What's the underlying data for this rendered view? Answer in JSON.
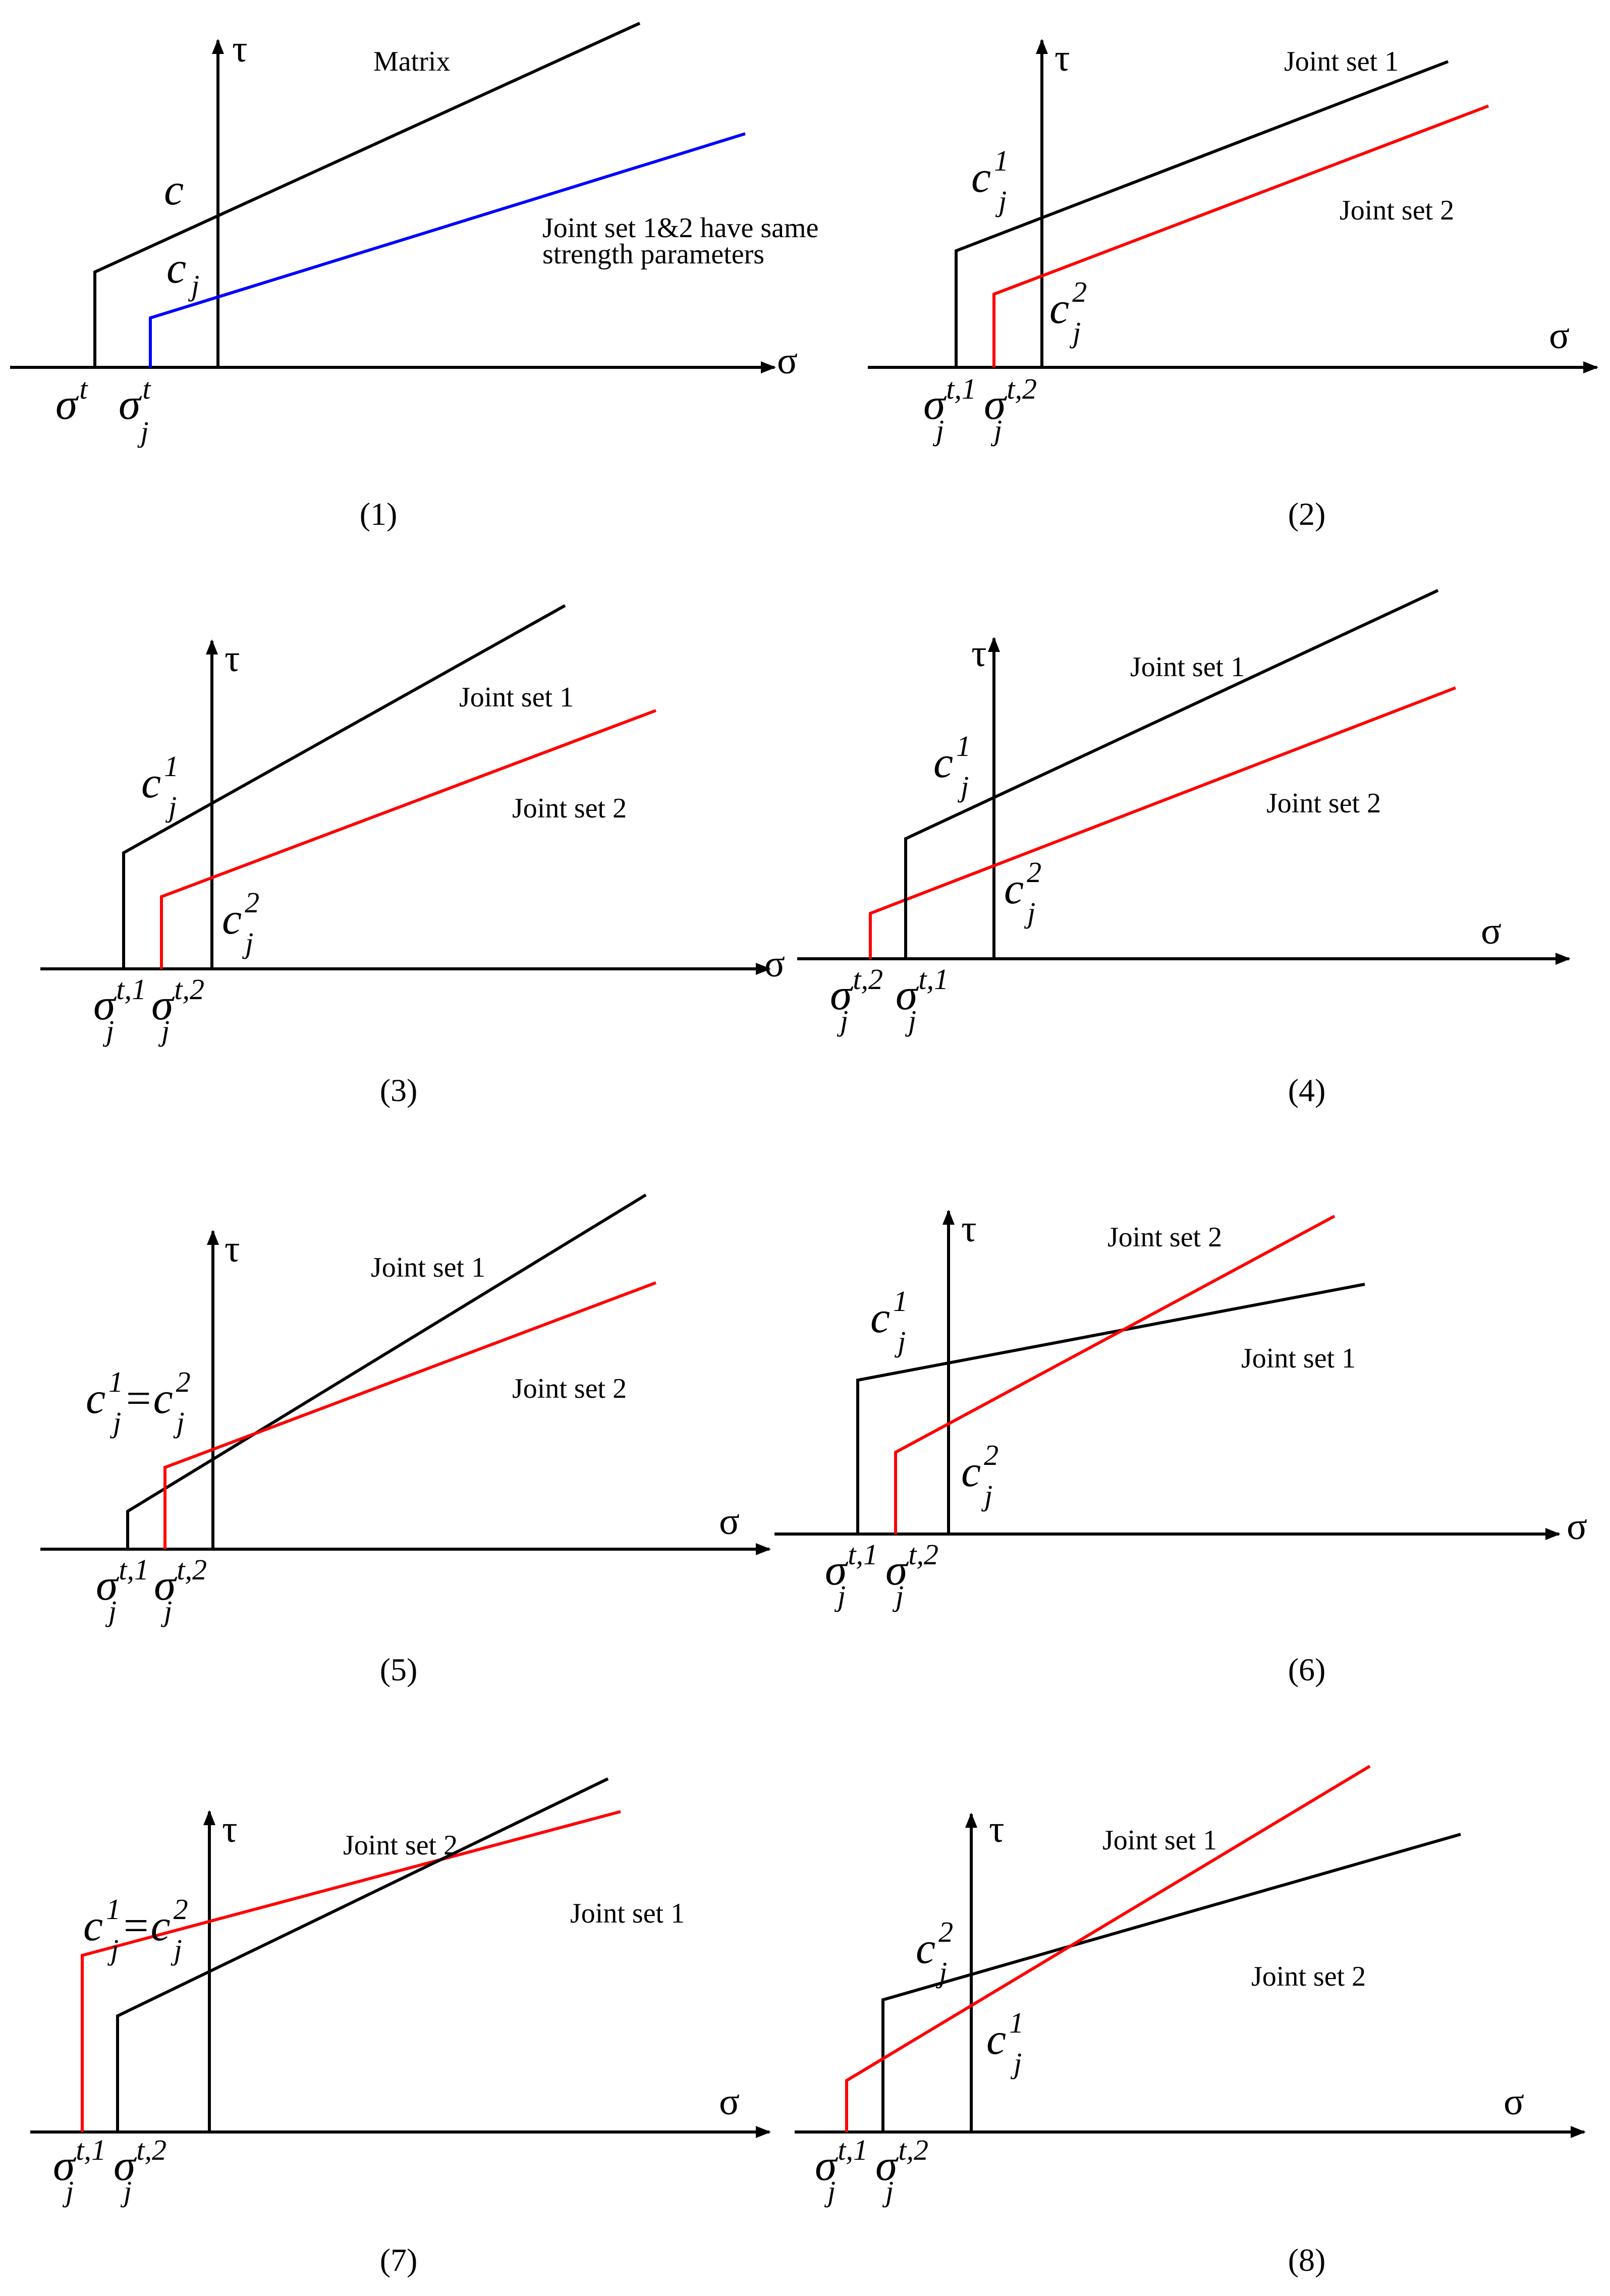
{
  "axes": {
    "tau": "τ",
    "sigma": "σ"
  },
  "panels": [
    {
      "caption": "(1)",
      "labels": {
        "matrix": "Matrix",
        "note_line1": "Joint set 1&2 have same",
        "note_line2": "strength parameters"
      },
      "symbols": {
        "c": "c",
        "cj_base": "c",
        "cj_sub": "j",
        "sigt_base": "σ",
        "sigt_sup": "t",
        "sigtj_base": "σ",
        "sigtj_sup": "t",
        "sigtj_sub": "j"
      }
    },
    {
      "caption": "(2)",
      "labels": {
        "js1": "Joint set 1",
        "js2": "Joint set 2"
      },
      "symbols": {
        "c_base": "c",
        "sup1": "1",
        "sup2": "2",
        "sub_j": "j",
        "sig_base": "σ",
        "sigsup1": "t,1",
        "sigsup2": "t,2"
      }
    },
    {
      "caption": "(3)",
      "labels": {
        "js1": "Joint set 1",
        "js2": "Joint set 2"
      },
      "symbols": {
        "c_base": "c",
        "sup1": "1",
        "sup2": "2",
        "sub_j": "j",
        "sig_base": "σ",
        "sigsup1": "t,1",
        "sigsup2": "t,2"
      }
    },
    {
      "caption": "(4)",
      "labels": {
        "js1": "Joint set 1",
        "js2": "Joint set 2"
      },
      "symbols": {
        "c_base": "c",
        "sup1": "1",
        "sup2": "2",
        "sub_j": "j",
        "sig_base": "σ",
        "sigsup1": "t,1",
        "sigsup2": "t,2"
      }
    },
    {
      "caption": "(5)",
      "labels": {
        "js1": "Joint set 1",
        "js2": "Joint set 2"
      },
      "symbols": {
        "c_base": "c",
        "sup1": "1",
        "sup2": "2",
        "sub_j": "j",
        "eq": "=",
        "sig_base": "σ",
        "sigsup1": "t,1",
        "sigsup2": "t,2"
      }
    },
    {
      "caption": "(6)",
      "labels": {
        "js1": "Joint set 1",
        "js2": "Joint set 2"
      },
      "symbols": {
        "c_base": "c",
        "sup1": "1",
        "sup2": "2",
        "sub_j": "j",
        "sig_base": "σ",
        "sigsup1": "t,1",
        "sigsup2": "t,2"
      }
    },
    {
      "caption": "(7)",
      "labels": {
        "js1": "Joint set 1",
        "js2": "Joint set 2"
      },
      "symbols": {
        "c_base": "c",
        "sup1": "1",
        "sup2": "2",
        "sub_j": "j",
        "eq": "=",
        "sig_base": "σ",
        "sigsup1": "t,1",
        "sigsup2": "t,2"
      }
    },
    {
      "caption": "(8)",
      "labels": {
        "js1": "Joint set 1",
        "js2": "Joint set 2"
      },
      "symbols": {
        "c_base": "c",
        "sup1": "1",
        "sup2": "2",
        "sub_j": "j",
        "sig_base": "σ",
        "sigsup1": "t,1",
        "sigsup2": "t,2"
      }
    }
  ],
  "colors": {
    "matrix": "#000000",
    "black_line": "#000000",
    "red_line": "#ff0000",
    "blue_line": "#0000ff"
  }
}
